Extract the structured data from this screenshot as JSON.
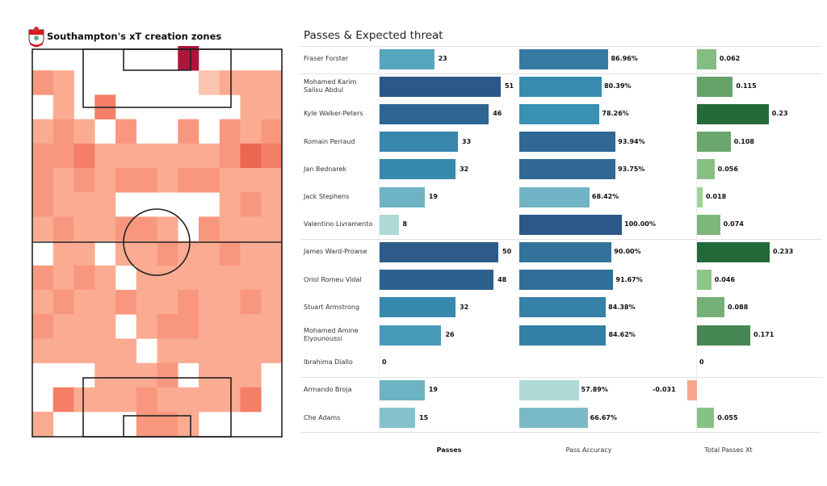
{
  "heatmap": {
    "title": "Southampton's xT creation zones",
    "logo_text": "Southampton FC",
    "colors": {
      "1": "#fcc5b2",
      "2": "#fbab92",
      "3": "#f9977e",
      "4": "#f47f66",
      "5": "#ec6650",
      "top": "#b0143a",
      "line": "#222222"
    },
    "grid_levels": [
      [
        0,
        0,
        0,
        0,
        0,
        0,
        0,
        9,
        0,
        0,
        0,
        0
      ],
      [
        3,
        2,
        0,
        0,
        0,
        0,
        0,
        0,
        1,
        2,
        2,
        2
      ],
      [
        0,
        2,
        0,
        4,
        0,
        0,
        0,
        0,
        0,
        0,
        2,
        2
      ],
      [
        2,
        3,
        2,
        0,
        3,
        0,
        0,
        3,
        0,
        3,
        2,
        3
      ],
      [
        3,
        3,
        4,
        2,
        2,
        2,
        2,
        2,
        2,
        3,
        5,
        4
      ],
      [
        3,
        2,
        3,
        2,
        3,
        3,
        2,
        3,
        3,
        2,
        2,
        2
      ],
      [
        3,
        2,
        2,
        2,
        0,
        0,
        0,
        0,
        0,
        2,
        3,
        2
      ],
      [
        2,
        3,
        2,
        2,
        3,
        3,
        2,
        0,
        3,
        2,
        2,
        2
      ],
      [
        0,
        2,
        2,
        0,
        2,
        2,
        3,
        2,
        2,
        3,
        2,
        2
      ],
      [
        3,
        2,
        3,
        2,
        0,
        2,
        2,
        2,
        2,
        2,
        2,
        2
      ],
      [
        2,
        3,
        2,
        2,
        3,
        2,
        2,
        3,
        2,
        2,
        3,
        2
      ],
      [
        3,
        2,
        2,
        2,
        0,
        2,
        3,
        3,
        2,
        2,
        2,
        2
      ],
      [
        2,
        2,
        2,
        2,
        2,
        0,
        2,
        2,
        2,
        2,
        2,
        2
      ],
      [
        0,
        0,
        0,
        2,
        2,
        2,
        3,
        0,
        2,
        2,
        2,
        0
      ],
      [
        0,
        4,
        2,
        2,
        2,
        3,
        2,
        2,
        2,
        2,
        4,
        0
      ],
      [
        2,
        0,
        0,
        0,
        0,
        3,
        3,
        2,
        0,
        0,
        0,
        0
      ]
    ]
  },
  "chart_data": {
    "type": "bar",
    "title": "Passes & Expected threat",
    "columns": [
      "Passes",
      "Pass Accuracy",
      "Total Passes Xt"
    ],
    "groups_after_index": [
      0,
      6,
      11
    ],
    "players": [
      {
        "name": "Fraser Forster",
        "passes": 23,
        "accuracy": 86.96,
        "accuracy_label": "86.96%",
        "xt": 0.062,
        "xt_label": "0.062"
      },
      {
        "name": "Mohamed Karim Salisu Abdul",
        "passes": 51,
        "accuracy": 80.39,
        "accuracy_label": "80.39%",
        "xt": 0.115,
        "xt_label": "0.115"
      },
      {
        "name": "Kyle Walker-Peters",
        "passes": 46,
        "accuracy": 78.26,
        "accuracy_label": "78.26%",
        "xt": 0.23,
        "xt_label": "0.23"
      },
      {
        "name": "Romain Perraud",
        "passes": 33,
        "accuracy": 93.94,
        "accuracy_label": "93.94%",
        "xt": 0.108,
        "xt_label": "0.108"
      },
      {
        "name": "Jan Bednarek",
        "passes": 32,
        "accuracy": 93.75,
        "accuracy_label": "93.75%",
        "xt": 0.056,
        "xt_label": "0.056"
      },
      {
        "name": "Jack Stephens",
        "passes": 19,
        "accuracy": 68.42,
        "accuracy_label": "68.42%",
        "xt": 0.018,
        "xt_label": "0.018"
      },
      {
        "name": "Valentino Livramento",
        "passes": 8,
        "accuracy": 100.0,
        "accuracy_label": "100.00%",
        "xt": 0.074,
        "xt_label": "0.074"
      },
      {
        "name": "James  Ward-Prowse",
        "passes": 50,
        "accuracy": 90.0,
        "accuracy_label": "90.00%",
        "xt": 0.233,
        "xt_label": "0.233"
      },
      {
        "name": "Oriol Romeu Vidal",
        "passes": 48,
        "accuracy": 91.67,
        "accuracy_label": "91.67%",
        "xt": 0.046,
        "xt_label": "0.046"
      },
      {
        "name": "Stuart Armstrong",
        "passes": 32,
        "accuracy": 84.38,
        "accuracy_label": "84.38%",
        "xt": 0.088,
        "xt_label": "0.088"
      },
      {
        "name": "Mohamed Amine Elyounoussi",
        "passes": 26,
        "accuracy": 84.62,
        "accuracy_label": "84.62%",
        "xt": 0.171,
        "xt_label": "0.171"
      },
      {
        "name": "Ibrahima Diallo",
        "passes": 0,
        "accuracy": null,
        "accuracy_label": "",
        "xt": 0,
        "xt_label": "0"
      },
      {
        "name": "Armando Broja",
        "passes": 19,
        "accuracy": 57.89,
        "accuracy_label": "57.89%",
        "xt": -0.031,
        "xt_label": "-0.031"
      },
      {
        "name": "Che Adams",
        "passes": 15,
        "accuracy": 66.67,
        "accuracy_label": "66.67%",
        "xt": 0.055,
        "xt_label": "0.055"
      }
    ],
    "colors": {
      "blue_light": "#bfe4dc",
      "blue_mid": "#3a93b5",
      "blue_dark": "#2b5887",
      "green_light": "#a8dc9c",
      "green_dark": "#226838",
      "negative": "#f6a68c"
    }
  }
}
